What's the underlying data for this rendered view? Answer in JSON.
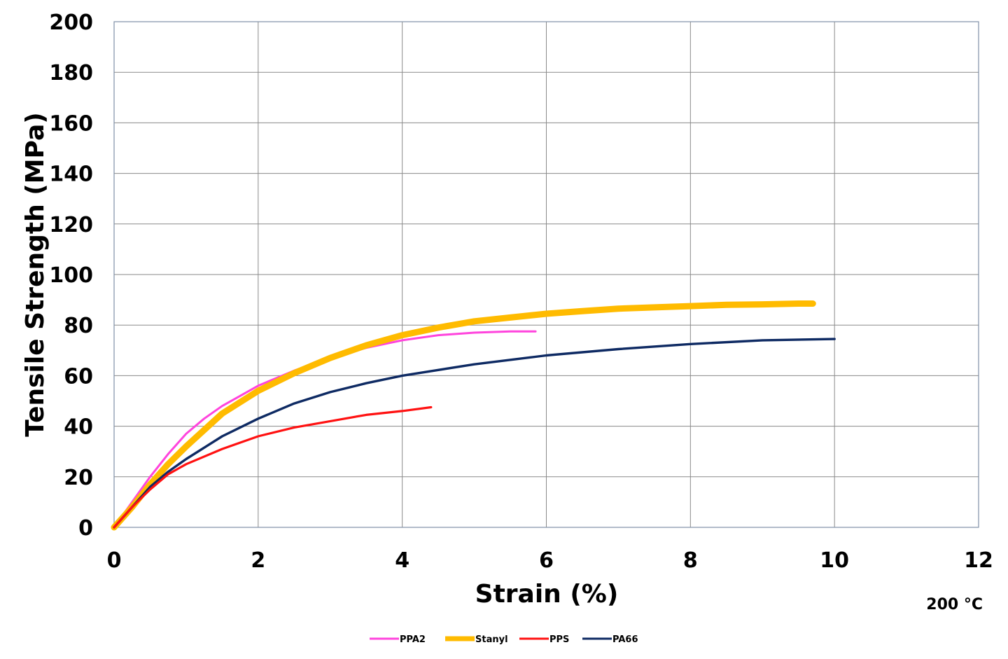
{
  "chart_data": {
    "type": "line",
    "xlabel": "Strain (%)",
    "ylabel": "Tensile Strength (MPa)",
    "annotation": "200 °C",
    "xlim": [
      0,
      12
    ],
    "ylim": [
      0,
      200
    ],
    "xticks": [
      0,
      2,
      4,
      6,
      8,
      10,
      12
    ],
    "yticks": [
      0,
      20,
      40,
      60,
      80,
      100,
      120,
      140,
      160,
      180,
      200
    ],
    "grid": true,
    "legend_position": "bottom",
    "series": [
      {
        "name": "PPA2",
        "color": "#ff44dd",
        "x": [
          0,
          0.25,
          0.5,
          0.75,
          1.0,
          1.25,
          1.5,
          1.75,
          2.0,
          2.5,
          3.0,
          3.5,
          4.0,
          4.5,
          5.0,
          5.5,
          5.85
        ],
        "y": [
          0,
          10,
          20,
          29,
          37,
          43,
          48,
          52,
          56,
          62,
          67,
          71,
          74,
          76,
          77,
          77.5,
          77.5
        ]
      },
      {
        "name": "Stanyl",
        "color": "#ffbb00",
        "x": [
          0,
          0.25,
          0.5,
          0.75,
          1.0,
          1.5,
          2.0,
          2.5,
          3.0,
          3.5,
          4.0,
          4.5,
          5.0,
          5.5,
          6.0,
          6.5,
          7.0,
          7.5,
          8.0,
          8.5,
          9.0,
          9.5,
          9.7
        ],
        "y": [
          0,
          8,
          17,
          25,
          32,
          45,
          54,
          61,
          67,
          72,
          76,
          79,
          81.5,
          83,
          84.5,
          85.5,
          86.5,
          87,
          87.5,
          88,
          88.2,
          88.5,
          88.5
        ]
      },
      {
        "name": "PPS",
        "color": "#ff1111",
        "x": [
          0,
          0.25,
          0.5,
          0.75,
          1.0,
          1.5,
          2.0,
          2.5,
          3.0,
          3.5,
          4.0,
          4.4
        ],
        "y": [
          0,
          8,
          15,
          21,
          25,
          31,
          36,
          39.5,
          42,
          44.5,
          46,
          47.5
        ]
      },
      {
        "name": "PA66",
        "color": "#0e2a63",
        "x": [
          0,
          0.25,
          0.5,
          0.75,
          1.0,
          1.5,
          2.0,
          2.5,
          3.0,
          3.5,
          4.0,
          5.0,
          6.0,
          7.0,
          8.0,
          9.0,
          10.0
        ],
        "y": [
          0,
          8,
          16,
          22,
          27,
          36,
          43,
          49,
          53.5,
          57,
          60,
          64.5,
          68,
          70.5,
          72.5,
          74,
          74.5
        ]
      }
    ]
  }
}
